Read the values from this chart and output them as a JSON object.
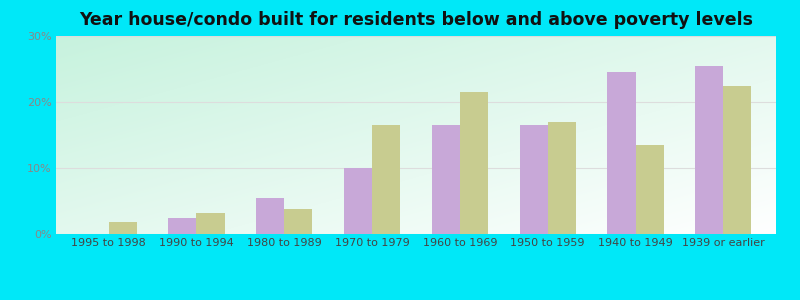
{
  "title": "Year house/condo built for residents below and above poverty levels",
  "categories": [
    "1995 to 1998",
    "1990 to 1994",
    "1980 to 1989",
    "1970 to 1979",
    "1960 to 1969",
    "1950 to 1959",
    "1940 to 1949",
    "1939 or earlier"
  ],
  "below_poverty": [
    0.0,
    2.5,
    5.5,
    10.0,
    16.5,
    16.5,
    24.5,
    25.5
  ],
  "above_poverty": [
    1.8,
    3.2,
    3.8,
    16.5,
    21.5,
    17.0,
    13.5,
    22.5
  ],
  "below_color": "#c8a8d8",
  "above_color": "#c8cc90",
  "ylim": [
    0,
    30
  ],
  "yticks": [
    0,
    10,
    20,
    30
  ],
  "ytick_labels": [
    "0%",
    "10%",
    "20%",
    "30%"
  ],
  "outer_bg": "#00e8f8",
  "title_fontsize": 12.5,
  "tick_fontsize": 8,
  "legend_fontsize": 9
}
